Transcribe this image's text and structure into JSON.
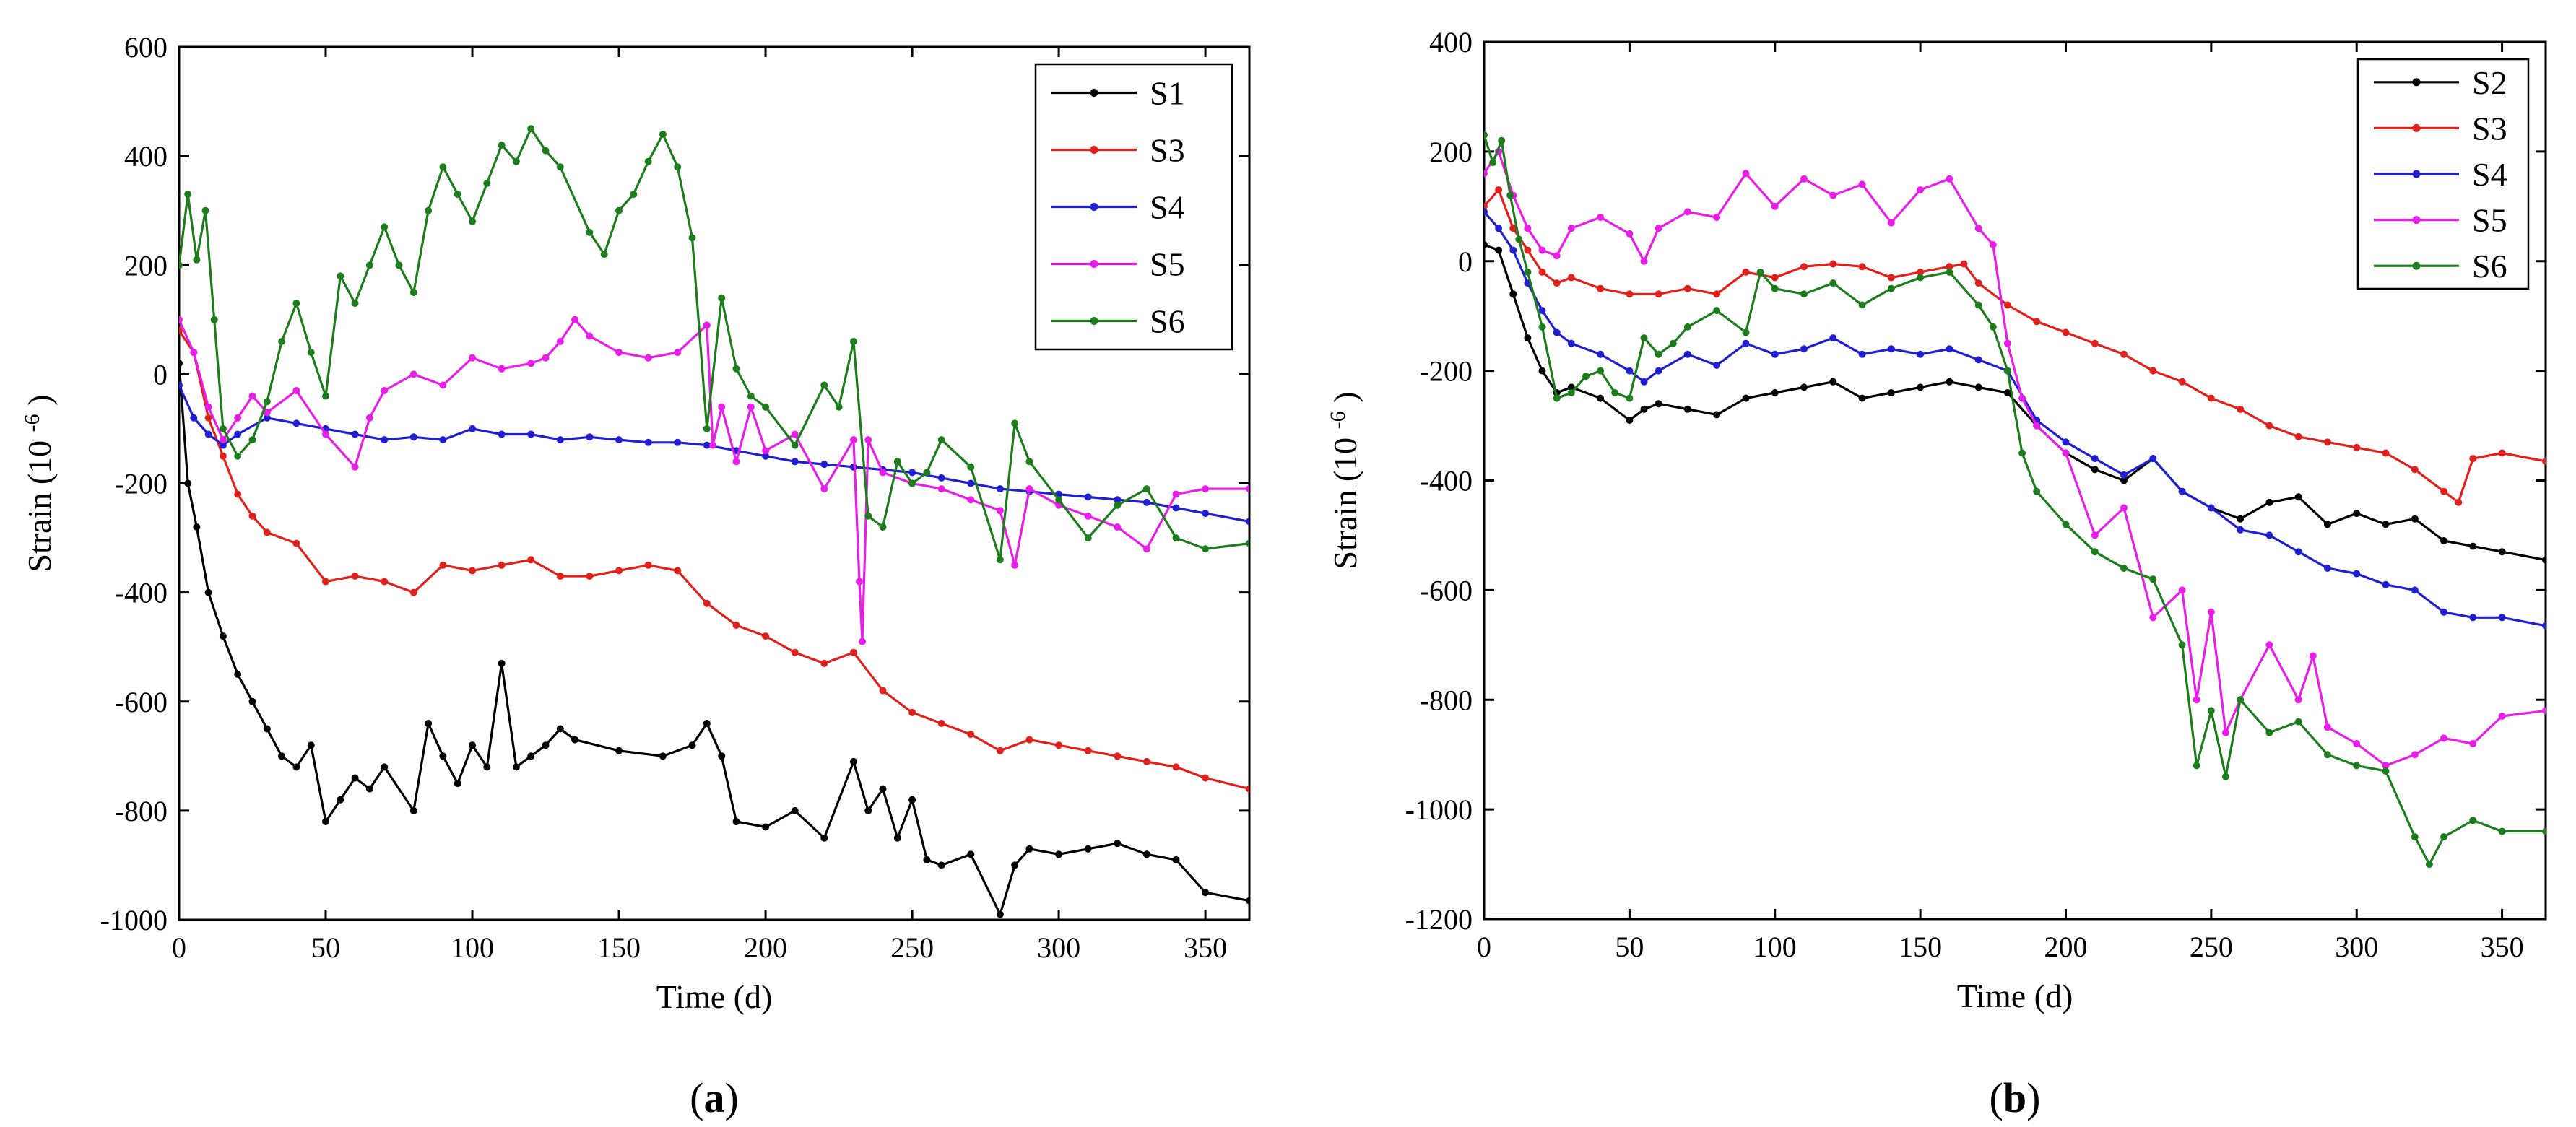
{
  "chart_data": [
    {
      "type": "line",
      "panel": "a",
      "caption_prefix": "(",
      "caption_letter": "a",
      "caption_suffix": ")",
      "title": "",
      "xlabel": "Time (d)",
      "ylabel": "Strain (10",
      "ylabel_exponent": "-6",
      "ylabel_close": ")",
      "xlim": [
        0,
        365
      ],
      "ylim": [
        -1000,
        600
      ],
      "xticks": [
        0,
        50,
        100,
        150,
        200,
        250,
        300,
        350
      ],
      "yticks": [
        -1000,
        -800,
        -600,
        -400,
        -200,
        0,
        200,
        400,
        600
      ],
      "legend_position": "top-right",
      "series": [
        {
          "name": "S1",
          "color": "#000000",
          "x": [
            0,
            3,
            6,
            10,
            15,
            20,
            25,
            30,
            35,
            40,
            45,
            50,
            55,
            60,
            65,
            70,
            80,
            85,
            90,
            95,
            100,
            105,
            110,
            115,
            120,
            125,
            130,
            135,
            150,
            165,
            175,
            180,
            185,
            190,
            200,
            210,
            220,
            230,
            235,
            240,
            245,
            250,
            255,
            260,
            270,
            280,
            285,
            290,
            300,
            310,
            320,
            330,
            340,
            350,
            365
          ],
          "values": [
            20,
            -200,
            -280,
            -400,
            -480,
            -550,
            -600,
            -650,
            -700,
            -720,
            -680,
            -820,
            -780,
            -740,
            -760,
            -720,
            -800,
            -640,
            -700,
            -750,
            -680,
            -720,
            -530,
            -720,
            -700,
            -680,
            -650,
            -670,
            -690,
            -700,
            -680,
            -640,
            -700,
            -820,
            -830,
            -800,
            -850,
            -710,
            -800,
            -760,
            -850,
            -780,
            -890,
            -900,
            -880,
            -990,
            -900,
            -870,
            -880,
            -870,
            -860,
            -880,
            -890,
            -950,
            -965
          ]
        },
        {
          "name": "S3",
          "color": "#e0201b",
          "x": [
            0,
            5,
            10,
            15,
            20,
            25,
            30,
            40,
            50,
            60,
            70,
            80,
            90,
            100,
            110,
            120,
            130,
            140,
            150,
            160,
            170,
            180,
            190,
            200,
            210,
            220,
            230,
            240,
            250,
            260,
            270,
            280,
            290,
            300,
            310,
            320,
            330,
            340,
            350,
            365
          ],
          "values": [
            80,
            40,
            -80,
            -150,
            -220,
            -260,
            -290,
            -310,
            -380,
            -370,
            -380,
            -400,
            -350,
            -360,
            -350,
            -340,
            -370,
            -370,
            -360,
            -350,
            -360,
            -420,
            -460,
            -480,
            -510,
            -530,
            -510,
            -580,
            -620,
            -640,
            -660,
            -690,
            -670,
            -680,
            -690,
            -700,
            -710,
            -720,
            -740,
            -760
          ]
        },
        {
          "name": "S4",
          "color": "#1f1fd1",
          "x": [
            0,
            5,
            10,
            15,
            20,
            30,
            40,
            50,
            60,
            70,
            80,
            90,
            100,
            110,
            120,
            130,
            140,
            150,
            160,
            170,
            180,
            190,
            200,
            210,
            220,
            230,
            240,
            250,
            260,
            270,
            280,
            290,
            300,
            310,
            320,
            330,
            340,
            350,
            365
          ],
          "values": [
            -20,
            -80,
            -110,
            -130,
            -110,
            -80,
            -90,
            -100,
            -110,
            -120,
            -115,
            -120,
            -100,
            -110,
            -110,
            -120,
            -115,
            -120,
            -125,
            -125,
            -130,
            -140,
            -150,
            -160,
            -165,
            -170,
            -175,
            -180,
            -190,
            -200,
            -210,
            -215,
            -220,
            -225,
            -230,
            -235,
            -245,
            -255,
            -270
          ]
        },
        {
          "name": "S5",
          "color": "#e81ee8",
          "x": [
            0,
            5,
            10,
            15,
            20,
            25,
            30,
            40,
            50,
            60,
            65,
            70,
            80,
            90,
            100,
            110,
            120,
            125,
            130,
            135,
            140,
            150,
            160,
            170,
            180,
            182,
            185,
            190,
            195,
            200,
            210,
            220,
            230,
            232,
            233,
            235,
            240,
            250,
            260,
            270,
            280,
            285,
            290,
            300,
            310,
            320,
            330,
            340,
            350,
            365
          ],
          "values": [
            100,
            40,
            -60,
            -120,
            -80,
            -40,
            -70,
            -30,
            -110,
            -170,
            -80,
            -30,
            0,
            -20,
            30,
            10,
            20,
            30,
            60,
            100,
            70,
            40,
            30,
            40,
            90,
            -130,
            -60,
            -160,
            -60,
            -140,
            -110,
            -210,
            -120,
            -380,
            -490,
            -120,
            -180,
            -200,
            -210,
            -230,
            -250,
            -350,
            -210,
            -240,
            -260,
            -280,
            -320,
            -220,
            -210,
            -210
          ]
        },
        {
          "name": "S6",
          "color": "#1d7d1d",
          "x": [
            0,
            3,
            6,
            9,
            12,
            15,
            20,
            25,
            30,
            35,
            40,
            45,
            50,
            55,
            60,
            65,
            70,
            75,
            80,
            85,
            90,
            95,
            100,
            105,
            110,
            115,
            120,
            125,
            130,
            140,
            145,
            150,
            155,
            160,
            165,
            170,
            175,
            180,
            185,
            190,
            195,
            200,
            210,
            220,
            225,
            230,
            235,
            240,
            245,
            250,
            255,
            260,
            270,
            280,
            285,
            290,
            300,
            310,
            320,
            330,
            340,
            350,
            365
          ],
          "values": [
            200,
            330,
            210,
            300,
            100,
            -100,
            -150,
            -120,
            -50,
            60,
            130,
            40,
            -40,
            180,
            130,
            200,
            270,
            200,
            150,
            300,
            380,
            330,
            280,
            350,
            420,
            390,
            450,
            410,
            380,
            260,
            220,
            300,
            330,
            390,
            440,
            380,
            250,
            -100,
            140,
            10,
            -40,
            -60,
            -130,
            -20,
            -60,
            60,
            -260,
            -280,
            -160,
            -200,
            -180,
            -120,
            -170,
            -340,
            -90,
            -160,
            -230,
            -300,
            -240,
            -210,
            -300,
            -320,
            -310
          ]
        }
      ]
    },
    {
      "type": "line",
      "panel": "b",
      "caption_prefix": "(",
      "caption_letter": "b",
      "caption_suffix": ")",
      "title": "",
      "xlabel": "Time (d)",
      "ylabel": "Strain (10",
      "ylabel_exponent": "-6",
      "ylabel_close": ")",
      "xlim": [
        0,
        365
      ],
      "ylim": [
        -1200,
        400
      ],
      "xticks": [
        0,
        50,
        100,
        150,
        200,
        250,
        300,
        350
      ],
      "yticks": [
        -1200,
        -1000,
        -800,
        -600,
        -400,
        -200,
        0,
        200,
        400
      ],
      "legend_position": "top-right",
      "series": [
        {
          "name": "S2",
          "color": "#000000",
          "x": [
            0,
            5,
            10,
            15,
            20,
            25,
            30,
            40,
            50,
            55,
            60,
            70,
            80,
            90,
            100,
            110,
            120,
            130,
            140,
            150,
            160,
            170,
            180,
            190,
            200,
            210,
            220,
            230,
            240,
            250,
            260,
            270,
            280,
            290,
            300,
            310,
            320,
            330,
            340,
            350,
            365
          ],
          "values": [
            30,
            20,
            -60,
            -140,
            -200,
            -240,
            -230,
            -250,
            -290,
            -270,
            -260,
            -270,
            -280,
            -250,
            -240,
            -230,
            -220,
            -250,
            -240,
            -230,
            -220,
            -230,
            -240,
            -300,
            -350,
            -380,
            -400,
            -360,
            -420,
            -450,
            -470,
            -440,
            -430,
            -480,
            -460,
            -480,
            -470,
            -510,
            -520,
            -530,
            -545
          ]
        },
        {
          "name": "S3",
          "color": "#e0201b",
          "x": [
            0,
            5,
            10,
            15,
            20,
            25,
            30,
            40,
            50,
            60,
            70,
            80,
            90,
            100,
            110,
            120,
            130,
            140,
            150,
            160,
            165,
            170,
            180,
            190,
            200,
            210,
            220,
            230,
            240,
            250,
            260,
            270,
            280,
            290,
            300,
            310,
            320,
            330,
            335,
            340,
            350,
            365
          ],
          "values": [
            100,
            130,
            60,
            20,
            -20,
            -40,
            -30,
            -50,
            -60,
            -60,
            -50,
            -60,
            -20,
            -30,
            -10,
            -5,
            -10,
            -30,
            -20,
            -10,
            -5,
            -40,
            -80,
            -110,
            -130,
            -150,
            -170,
            -200,
            -220,
            -250,
            -270,
            -300,
            -320,
            -330,
            -340,
            -350,
            -380,
            -420,
            -440,
            -360,
            -350,
            -365
          ]
        },
        {
          "name": "S4",
          "color": "#1f1fd1",
          "x": [
            0,
            5,
            10,
            15,
            20,
            25,
            30,
            40,
            50,
            55,
            60,
            70,
            80,
            90,
            100,
            110,
            120,
            130,
            140,
            150,
            160,
            170,
            180,
            190,
            200,
            210,
            220,
            230,
            240,
            250,
            260,
            270,
            280,
            290,
            300,
            310,
            320,
            330,
            340,
            350,
            365
          ],
          "values": [
            90,
            60,
            20,
            -40,
            -90,
            -130,
            -150,
            -170,
            -200,
            -220,
            -200,
            -170,
            -190,
            -150,
            -170,
            -160,
            -140,
            -170,
            -160,
            -170,
            -160,
            -180,
            -200,
            -290,
            -330,
            -360,
            -390,
            -360,
            -420,
            -450,
            -490,
            -500,
            -530,
            -560,
            -570,
            -590,
            -600,
            -640,
            -650,
            -650,
            -665
          ]
        },
        {
          "name": "S5",
          "color": "#e81ee8",
          "x": [
            0,
            5,
            10,
            15,
            20,
            25,
            30,
            40,
            50,
            55,
            60,
            70,
            80,
            90,
            100,
            110,
            120,
            130,
            140,
            150,
            160,
            170,
            175,
            180,
            185,
            190,
            200,
            210,
            220,
            230,
            240,
            245,
            250,
            255,
            260,
            270,
            280,
            285,
            290,
            300,
            310,
            320,
            330,
            340,
            350,
            365
          ],
          "values": [
            160,
            200,
            120,
            60,
            20,
            10,
            60,
            80,
            50,
            0,
            60,
            90,
            80,
            160,
            100,
            150,
            120,
            140,
            70,
            130,
            150,
            60,
            30,
            -150,
            -250,
            -300,
            -350,
            -500,
            -450,
            -650,
            -600,
            -800,
            -640,
            -860,
            -800,
            -700,
            -800,
            -720,
            -850,
            -880,
            -920,
            -900,
            -870,
            -880,
            -830,
            -820
          ]
        },
        {
          "name": "S6",
          "color": "#1d7d1d",
          "x": [
            0,
            3,
            6,
            9,
            12,
            15,
            20,
            25,
            30,
            35,
            40,
            45,
            50,
            55,
            60,
            65,
            70,
            80,
            90,
            95,
            100,
            110,
            120,
            130,
            140,
            150,
            160,
            170,
            175,
            180,
            185,
            190,
            200,
            210,
            220,
            230,
            240,
            245,
            250,
            255,
            260,
            270,
            280,
            290,
            300,
            310,
            320,
            325,
            330,
            340,
            350,
            365
          ],
          "values": [
            230,
            180,
            220,
            120,
            40,
            -20,
            -120,
            -250,
            -240,
            -210,
            -200,
            -240,
            -250,
            -140,
            -170,
            -150,
            -120,
            -90,
            -130,
            -20,
            -50,
            -60,
            -40,
            -80,
            -50,
            -30,
            -20,
            -80,
            -120,
            -200,
            -350,
            -420,
            -480,
            -530,
            -560,
            -580,
            -700,
            -920,
            -820,
            -940,
            -800,
            -860,
            -840,
            -900,
            -920,
            -930,
            -1050,
            -1100,
            -1050,
            -1020,
            -1040,
            -1040
          ]
        }
      ]
    }
  ]
}
